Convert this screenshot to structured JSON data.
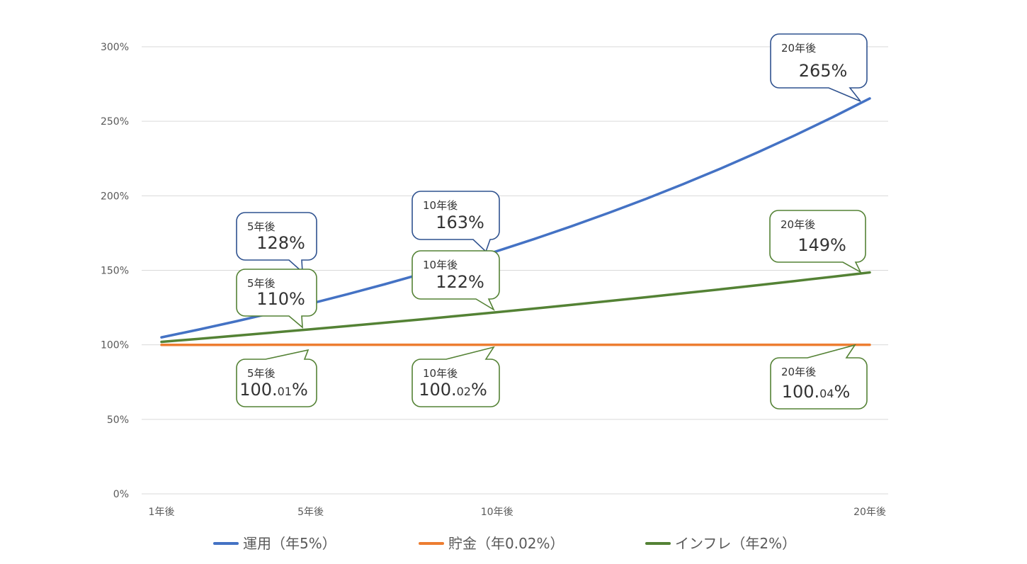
{
  "chart_data": {
    "type": "line",
    "title": "",
    "xlabel": "",
    "ylabel": "",
    "x": [
      1,
      2,
      3,
      4,
      5,
      6,
      7,
      8,
      9,
      10,
      11,
      12,
      13,
      14,
      15,
      16,
      17,
      18,
      19,
      20
    ],
    "x_tick_labels": [
      {
        "x": 1,
        "label": "1年後"
      },
      {
        "x": 5,
        "label": "5年後"
      },
      {
        "x": 10,
        "label": "10年後"
      },
      {
        "x": 20,
        "label": "20年後"
      }
    ],
    "ylim": [
      0,
      300
    ],
    "y_ticks": [
      0,
      50,
      100,
      150,
      200,
      250,
      300
    ],
    "y_tick_labels": [
      "0%",
      "50%",
      "100%",
      "150%",
      "200%",
      "250%",
      "300%"
    ],
    "grid": true,
    "legend_position": "bottom",
    "series": [
      {
        "name": "運用（年5%）",
        "color": "#4472C4",
        "values": [
          105,
          110.25,
          115.76,
          121.55,
          127.63,
          134.01,
          140.71,
          147.75,
          155.13,
          162.89,
          171.03,
          179.59,
          188.56,
          197.99,
          207.89,
          218.29,
          229.2,
          240.66,
          252.7,
          265.33
        ]
      },
      {
        "name": "貯金（年0.02%）",
        "color": "#ED7D31",
        "values": [
          100.002,
          100.004,
          100.006,
          100.008,
          100.01,
          100.012,
          100.014,
          100.016,
          100.018,
          100.02,
          100.022,
          100.024,
          100.026,
          100.028,
          100.03,
          100.032,
          100.034,
          100.036,
          100.038,
          100.04
        ]
      },
      {
        "name": "インフレ（年2%）",
        "color": "#548235",
        "values": [
          102,
          104.04,
          106.12,
          108.24,
          110.41,
          112.62,
          114.87,
          117.17,
          119.51,
          121.9,
          124.34,
          126.82,
          129.36,
          131.95,
          134.59,
          137.28,
          140.02,
          142.82,
          145.68,
          148.59
        ]
      }
    ],
    "annotations": [
      {
        "series": 0,
        "x": 5,
        "label": "5年後",
        "value": "128%",
        "border": "#2F528F"
      },
      {
        "series": 0,
        "x": 10,
        "label": "10年後",
        "value": "163%",
        "border": "#2F528F"
      },
      {
        "series": 0,
        "x": 20,
        "label": "20年後",
        "value": "265%",
        "border": "#2F528F"
      },
      {
        "series": 2,
        "x": 5,
        "label": "5年後",
        "value": "110%",
        "border": "#548235"
      },
      {
        "series": 2,
        "x": 10,
        "label": "10年後",
        "value": "122%",
        "border": "#548235"
      },
      {
        "series": 2,
        "x": 20,
        "label": "20年後",
        "value": "149%",
        "border": "#548235"
      },
      {
        "series": 1,
        "x": 5,
        "label": "5年後",
        "value": "100.01%",
        "border": "#548235"
      },
      {
        "series": 1,
        "x": 10,
        "label": "10年後",
        "value": "100.02%",
        "border": "#548235"
      },
      {
        "series": 1,
        "x": 20,
        "label": "20年後",
        "value": "100.04%",
        "border": "#548235"
      }
    ]
  }
}
